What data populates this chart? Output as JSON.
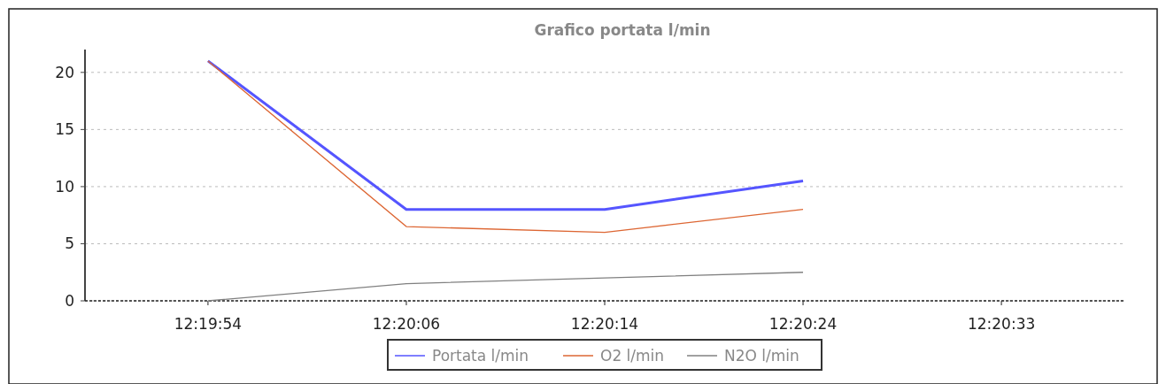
{
  "chart_data": {
    "type": "line",
    "title": "Grafico portata l/min",
    "categories": [
      "12:19:54",
      "12:20:06",
      "12:20:14",
      "12:20:24",
      "12:20:33"
    ],
    "series": [
      {
        "name": "Portata l/min",
        "color": "#5555ff",
        "values": [
          21,
          8,
          8,
          10.5,
          null
        ]
      },
      {
        "name": "O2 l/min",
        "color": "#dd6633",
        "values": [
          21,
          6.5,
          6,
          8,
          null
        ]
      },
      {
        "name": "N2O l/min",
        "color": "#808080",
        "values": [
          0,
          1.5,
          2,
          2.5,
          null
        ]
      }
    ],
    "ylim": [
      0,
      22
    ],
    "yticks": [
      0,
      5,
      10,
      15,
      20
    ],
    "grid": "y",
    "legend": "bottom",
    "marker": "none",
    "line_style": "solid"
  }
}
